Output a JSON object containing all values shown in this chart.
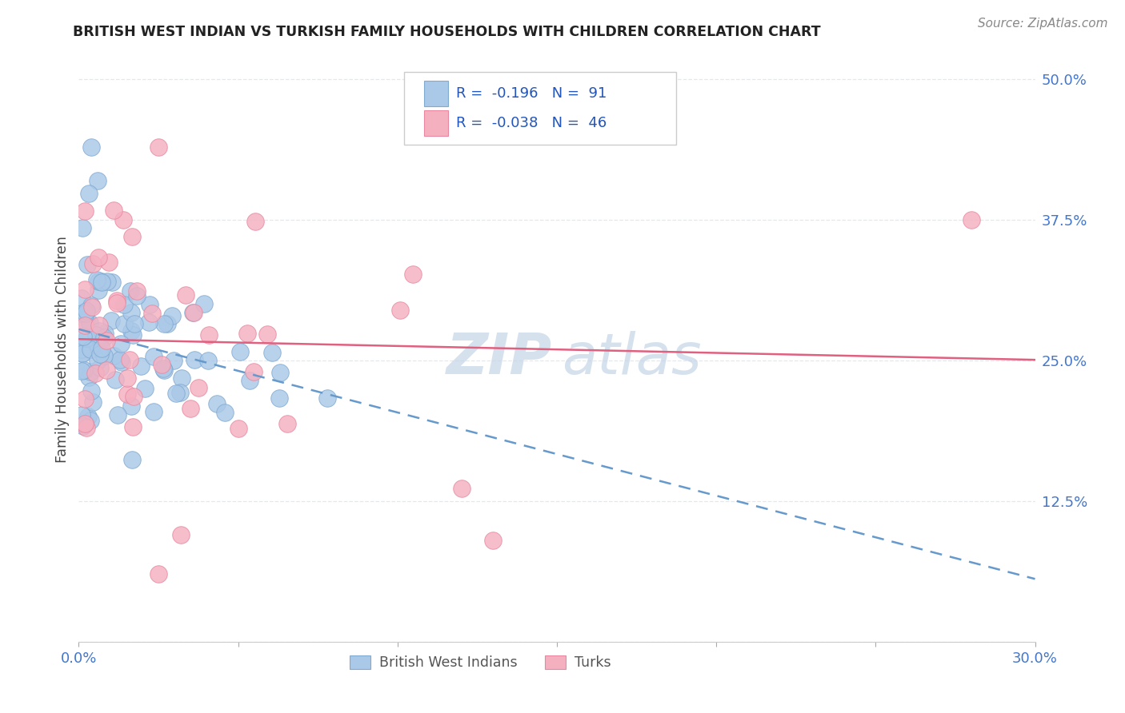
{
  "title": "BRITISH WEST INDIAN VS TURKISH FAMILY HOUSEHOLDS WITH CHILDREN CORRELATION CHART",
  "source_text": "Source: ZipAtlas.com",
  "ylabel": "Family Households with Children",
  "xlim": [
    0.0,
    0.3
  ],
  "ylim": [
    0.0,
    0.52
  ],
  "xtick_vals": [
    0.0,
    0.05,
    0.1,
    0.15,
    0.2,
    0.25,
    0.3
  ],
  "xticklabels": [
    "0.0%",
    "",
    "",
    "",
    "",
    "",
    "30.0%"
  ],
  "ytick_vals": [
    0.0,
    0.125,
    0.25,
    0.375,
    0.5
  ],
  "yticklabels": [
    "",
    "12.5%",
    "25.0%",
    "37.5%",
    "50.0%"
  ],
  "blue_R": -0.196,
  "blue_N": 91,
  "pink_R": -0.038,
  "pink_N": 46,
  "blue_fill": "#aac8e8",
  "pink_fill": "#f5b0c0",
  "blue_edge": "#80aad0",
  "pink_edge": "#e888a0",
  "blue_line": "#6699cc",
  "pink_line": "#e06080",
  "legend_text_color": "#2255bb",
  "grid_color": "#e0e8f0",
  "bg_color": "#ffffff",
  "watermark_color": "#c5d5e8",
  "title_color": "#222222",
  "tick_color": "#4477cc",
  "ylabel_color": "#444444",
  "source_color": "#888888",
  "blue_line_intercept": 0.272,
  "blue_line_slope": -0.53,
  "pink_line_intercept": 0.268,
  "pink_line_slope": -0.048
}
